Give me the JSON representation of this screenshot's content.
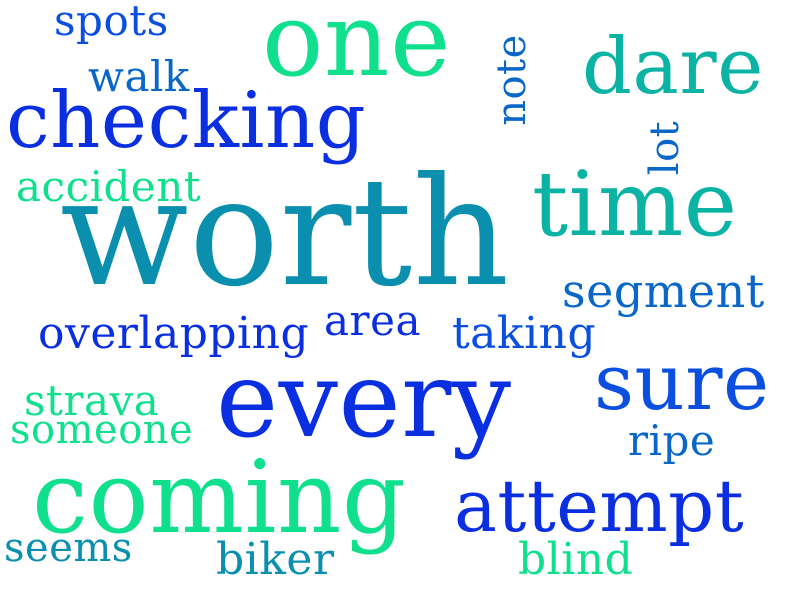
{
  "words": [
    {
      "text": "worth",
      "color": "#0A8FAF"
    },
    {
      "text": "every",
      "color": "#0A2FE0"
    },
    {
      "text": "coming",
      "color": "#10E08E"
    },
    {
      "text": "one",
      "color": "#10E08E"
    },
    {
      "text": "checking",
      "color": "#0A2FE0"
    },
    {
      "text": "time",
      "color": "#0AB3A3"
    },
    {
      "text": "attempt",
      "color": "#0A2FE0"
    },
    {
      "text": "dare",
      "color": "#0AB3A3"
    },
    {
      "text": "sure",
      "color": "#0A4FE0"
    },
    {
      "text": "segment",
      "color": "#0A67C8"
    },
    {
      "text": "overlapping",
      "color": "#0A2FE0"
    },
    {
      "text": "taking",
      "color": "#0A4FE0"
    },
    {
      "text": "accident",
      "color": "#10E08E"
    },
    {
      "text": "strava",
      "color": "#10E08E"
    },
    {
      "text": "someone",
      "color": "#10E08E"
    },
    {
      "text": "spots",
      "color": "#0A4FE0"
    },
    {
      "text": "walk",
      "color": "#0A67C8"
    },
    {
      "text": "note",
      "color": "#0A67C8"
    },
    {
      "text": "lot",
      "color": "#0A67C8"
    },
    {
      "text": "area",
      "color": "#0A2FE0"
    },
    {
      "text": "ripe",
      "color": "#0A67C8"
    },
    {
      "text": "seems",
      "color": "#0A8FAF"
    },
    {
      "text": "biker",
      "color": "#0A8FAF"
    },
    {
      "text": "blind",
      "color": "#10E08E"
    }
  ]
}
